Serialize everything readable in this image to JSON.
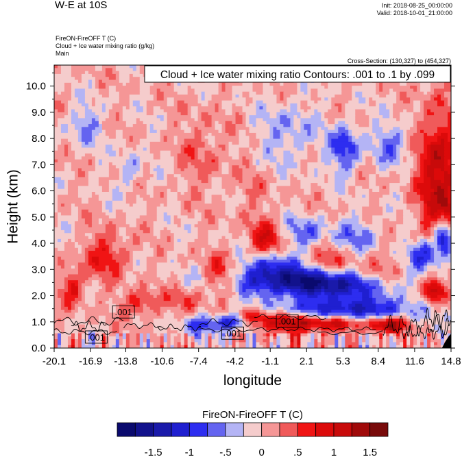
{
  "header": {
    "title": "W-E at 10S",
    "init": "Init: 2018-08-25_00:00:00",
    "valid": "Valid: 2018-10-01_21:00:00",
    "field_line1": "FireON-FireOFF T   (C)",
    "field_line2": "Cloud + Ice water mixing ratio   (g/kg)",
    "field_line3": "Main",
    "cross_section": "Cross-Section: (130,327) to (454,327)"
  },
  "chart_data": {
    "type": "heatmap",
    "title": "W-E at 10S",
    "contour_label": "Cloud + Ice water mixing ratio Contours: .001 to .1 by .099",
    "xlabel": "longitude",
    "ylabel": "Height (km)",
    "x_ticks": [
      "-20.1",
      "-16.9",
      "-13.8",
      "-10.6",
      "-7.4",
      "-4.2",
      "-1.1",
      "2.1",
      "5.3",
      "8.4",
      "11.6",
      "14.8"
    ],
    "y_ticks": [
      "0.0",
      "1.0",
      "2.0",
      "3.0",
      "4.0",
      "5.0",
      "6.0",
      "7.0",
      "8.0",
      "9.0",
      "10.0"
    ],
    "xlim": [
      -20.1,
      14.8
    ],
    "ylim": [
      0,
      10.8
    ],
    "contour_labels": [
      ".001",
      ".001",
      ".001",
      ".001"
    ],
    "colorbar": {
      "title": "FireON-FireOFF T  (C)",
      "tick_labels": [
        "-1.5",
        "-1",
        "-.5",
        "0",
        ".5",
        "1",
        "1.5"
      ],
      "levels": [
        -1.75,
        -1.5,
        -1.25,
        -1,
        -0.75,
        -0.5,
        -0.25,
        0,
        0.25,
        0.5,
        0.75,
        1,
        1.25,
        1.5,
        1.75
      ],
      "colors": [
        "#0a0a6e",
        "#12128c",
        "#1a1aaa",
        "#1f1fd0",
        "#2d2df0",
        "#6464f0",
        "#b4b4f5",
        "#f5cccc",
        "#f59696",
        "#f05a5a",
        "#f01414",
        "#dc0a0a",
        "#c80a0a",
        "#a00a0a",
        "#780a0a"
      ]
    },
    "field_description": "Temperature difference (C) vs longitude and height (km)"
  }
}
